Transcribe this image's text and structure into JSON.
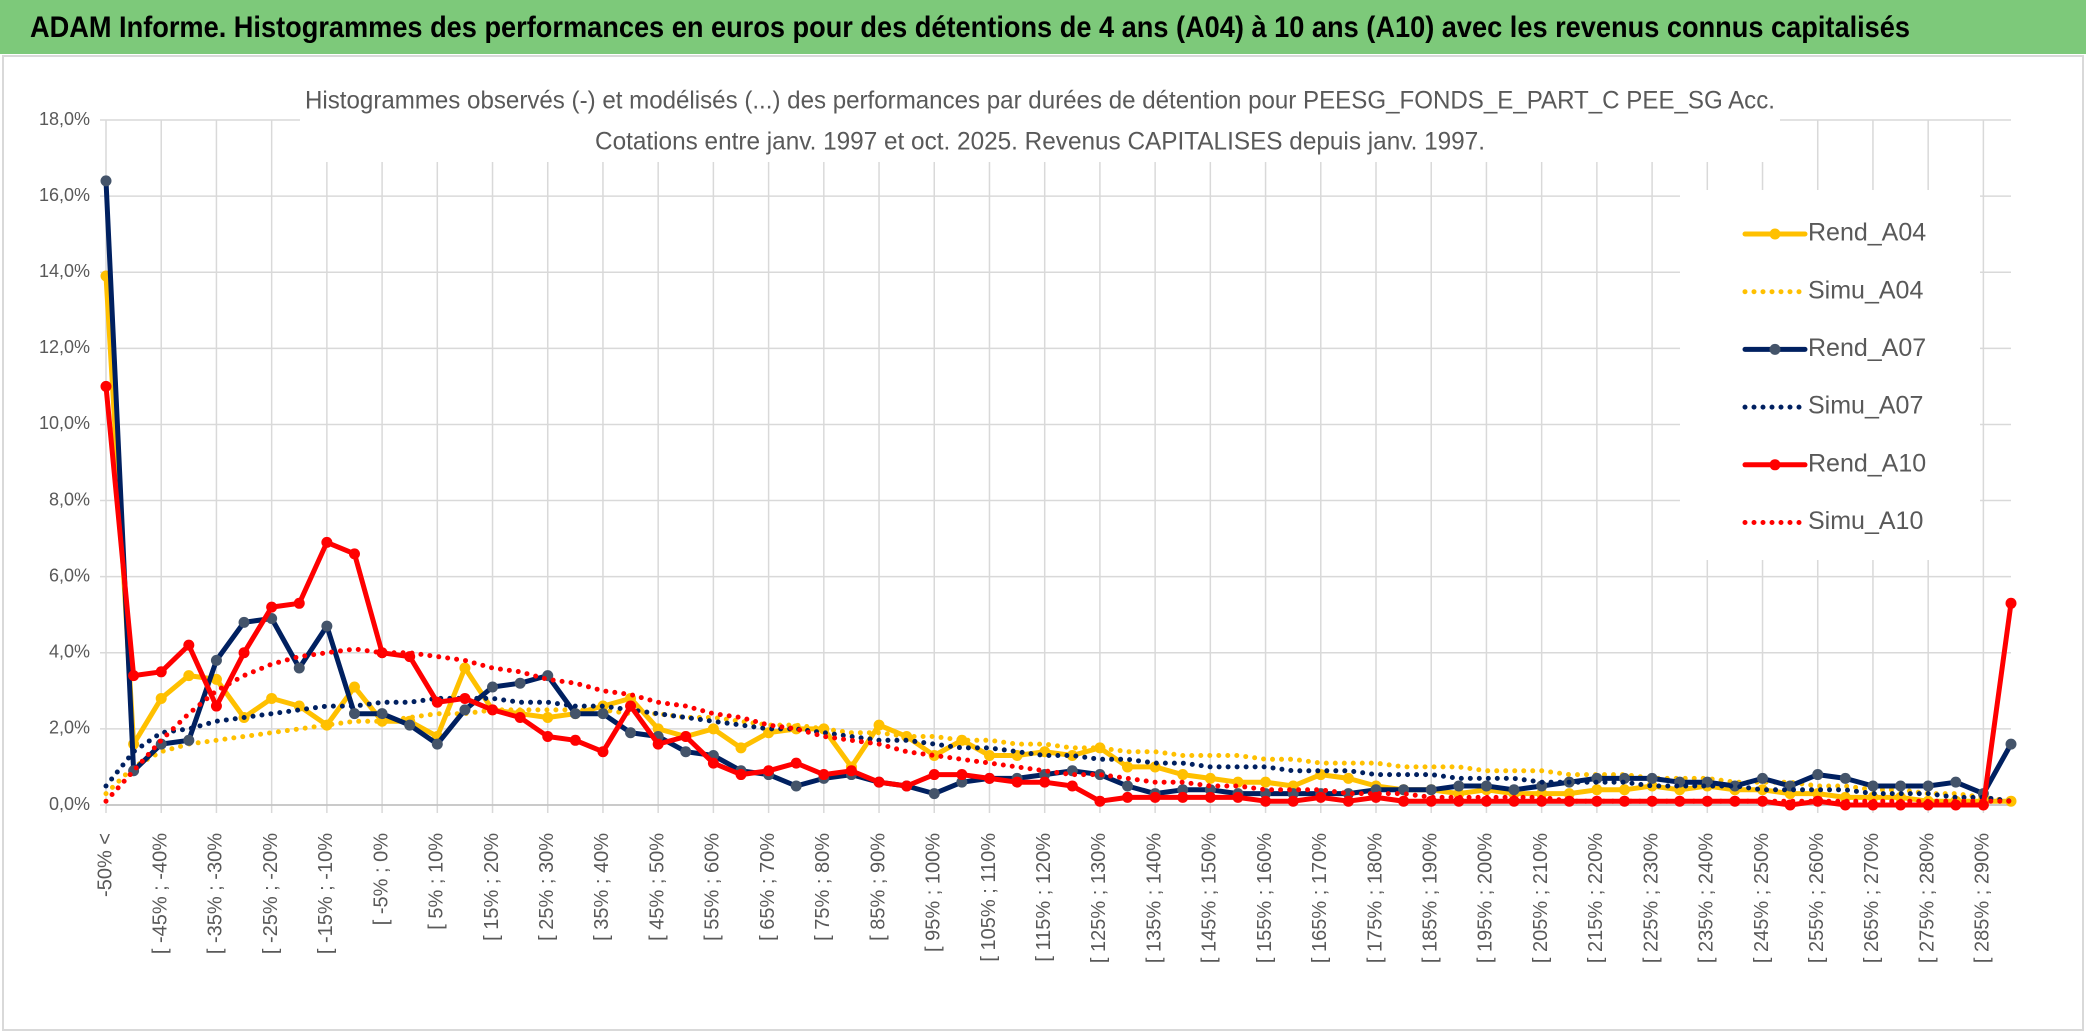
{
  "chart_data": {
    "type": "line",
    "header": "ADAM Informe. Histogrammes des performances en euros pour des détentions de 4 ans (A04) à 10 ans (A10) avec les revenus connus capitalisés",
    "title": "Histogrammes observés (-) et modélisés (...) des performances par durées de détention pour PEESG_FONDS_E_PART_C PEE_SG Acc.",
    "subtitle": "Cotations entre janv. 1997 et oct. 2025. Revenus CAPITALISES depuis janv. 1997.",
    "categories": [
      "-50% <",
      null,
      "[ -45% ; -40%",
      null,
      "[ -35% ; -30%",
      null,
      "[ -25% ; -20%",
      null,
      "[ -15% ; -10%",
      null,
      "[ -5% ; 0%",
      null,
      "[ 5% ; 10%",
      null,
      "[ 15% ; 20%",
      null,
      "[ 25% ; 30%",
      null,
      "[ 35% ; 40%",
      null,
      "[ 45% ; 50%",
      null,
      "[ 55% ; 60%",
      null,
      "[ 65% ; 70%",
      null,
      "[ 75% ; 80%",
      null,
      "[ 85% ; 90%",
      null,
      "[ 95% ; 100%",
      null,
      "[ 105% ; 110%",
      null,
      "[ 115% ; 120%",
      null,
      "[ 125% ; 130%",
      null,
      "[ 135% ; 140%",
      null,
      "[ 145% ; 150%",
      null,
      "[ 155% ; 160%",
      null,
      "[ 165% ; 170%",
      null,
      "[ 175% ; 180%",
      null,
      "[ 185% ; 190%",
      null,
      "[ 195% ; 200%",
      null,
      "[ 205% ; 210%",
      null,
      "[ 215% ; 220%",
      null,
      "[ 225% ; 230%",
      null,
      "[ 235% ; 240%",
      null,
      "[ 245% ; 250%",
      null,
      "[ 255% ; 260%",
      null,
      "[ 265% ; 270%",
      null,
      "[ 275% ; 280%",
      null,
      "[ 285% ; 290%",
      null
    ],
    "ylim": [
      0,
      18
    ],
    "yticks": [
      {
        "value": 0,
        "label": "0,0%"
      },
      {
        "value": 2,
        "label": "2,0%"
      },
      {
        "value": 4,
        "label": "4,0%"
      },
      {
        "value": 6,
        "label": "6,0%"
      },
      {
        "value": 8,
        "label": "8,0%"
      },
      {
        "value": 10,
        "label": "10,0%"
      },
      {
        "value": 12,
        "label": "12,0%"
      },
      {
        "value": 14,
        "label": "14,0%"
      },
      {
        "value": 16,
        "label": "16,0%"
      },
      {
        "value": 18,
        "label": "18,0%"
      }
    ],
    "grid": true,
    "legend": "right",
    "series": [
      {
        "name": "Rend_A04",
        "color": "#FFC000",
        "style": "solid",
        "marker": true,
        "values": [
          13.9,
          1.6,
          2.8,
          3.4,
          3.3,
          2.3,
          2.8,
          2.6,
          2.1,
          3.1,
          2.2,
          2.2,
          1.8,
          3.6,
          2.5,
          2.4,
          2.3,
          2.4,
          2.6,
          2.8,
          2.0,
          1.8,
          2.0,
          1.5,
          1.9,
          2.0,
          2.0,
          1.0,
          2.1,
          1.8,
          1.3,
          1.7,
          1.3,
          1.3,
          1.4,
          1.3,
          1.5,
          1.0,
          1.0,
          0.8,
          0.7,
          0.6,
          0.6,
          0.5,
          0.8,
          0.7,
          0.5,
          0.4,
          0.4,
          0.3,
          0.4,
          0.3,
          0.3,
          0.3,
          0.4,
          0.4,
          0.5,
          0.4,
          0.5,
          0.4,
          0.4,
          0.3,
          0.3,
          0.2,
          0.2,
          0.2,
          0.1,
          0.1,
          0.1,
          0.1
        ]
      },
      {
        "name": "Simu_A04",
        "color": "#FFC000",
        "style": "dotted",
        "marker": false,
        "values": [
          0.3,
          1.0,
          1.4,
          1.6,
          1.7,
          1.8,
          1.9,
          2.0,
          2.1,
          2.2,
          2.2,
          2.3,
          2.4,
          2.4,
          2.5,
          2.5,
          2.5,
          2.5,
          2.5,
          2.4,
          2.4,
          2.3,
          2.3,
          2.2,
          2.1,
          2.1,
          2.0,
          1.9,
          1.9,
          1.8,
          1.8,
          1.7,
          1.7,
          1.6,
          1.6,
          1.5,
          1.5,
          1.4,
          1.4,
          1.3,
          1.3,
          1.3,
          1.2,
          1.2,
          1.1,
          1.1,
          1.1,
          1.0,
          1.0,
          1.0,
          0.9,
          0.9,
          0.9,
          0.8,
          0.8,
          0.8,
          0.7,
          0.7,
          0.7,
          0.6,
          0.6,
          0.6,
          0.5,
          0.5,
          0.4,
          0.4,
          0.3,
          0.3,
          0.2,
          0.1
        ]
      },
      {
        "name": "Rend_A07",
        "color": "#002060",
        "style": "solid",
        "marker": true,
        "values": [
          16.4,
          0.9,
          1.6,
          1.7,
          3.8,
          4.8,
          4.9,
          3.6,
          4.7,
          2.4,
          2.4,
          2.1,
          1.6,
          2.5,
          3.1,
          3.2,
          3.4,
          2.4,
          2.4,
          1.9,
          1.8,
          1.4,
          1.3,
          0.9,
          0.8,
          0.5,
          0.7,
          0.8,
          0.6,
          0.5,
          0.3,
          0.6,
          0.7,
          0.7,
          0.8,
          0.9,
          0.8,
          0.5,
          0.3,
          0.4,
          0.4,
          0.3,
          0.3,
          0.3,
          0.3,
          0.3,
          0.4,
          0.4,
          0.4,
          0.5,
          0.5,
          0.4,
          0.5,
          0.6,
          0.7,
          0.7,
          0.7,
          0.6,
          0.6,
          0.5,
          0.7,
          0.5,
          0.8,
          0.7,
          0.5,
          0.5,
          0.5,
          0.6,
          0.3,
          1.6
        ]
      },
      {
        "name": "Simu_A07",
        "color": "#002060",
        "style": "dotted",
        "marker": false,
        "values": [
          0.5,
          1.4,
          1.9,
          2.0,
          2.2,
          2.3,
          2.4,
          2.5,
          2.6,
          2.6,
          2.7,
          2.7,
          2.8,
          2.8,
          2.8,
          2.7,
          2.7,
          2.6,
          2.6,
          2.5,
          2.4,
          2.3,
          2.2,
          2.1,
          2.0,
          2.0,
          1.9,
          1.8,
          1.7,
          1.7,
          1.6,
          1.5,
          1.5,
          1.4,
          1.3,
          1.3,
          1.2,
          1.2,
          1.1,
          1.1,
          1.0,
          1.0,
          1.0,
          0.9,
          0.9,
          0.9,
          0.8,
          0.8,
          0.8,
          0.7,
          0.7,
          0.7,
          0.6,
          0.6,
          0.6,
          0.6,
          0.5,
          0.5,
          0.5,
          0.5,
          0.4,
          0.4,
          0.4,
          0.4,
          0.3,
          0.3,
          0.3,
          0.2,
          0.2,
          0.1
        ]
      },
      {
        "name": "Rend_A10",
        "color": "#FF0000",
        "style": "solid",
        "marker": true,
        "values": [
          11.0,
          3.4,
          3.5,
          4.2,
          2.6,
          4.0,
          5.2,
          5.3,
          6.9,
          6.6,
          4.0,
          3.9,
          2.7,
          2.8,
          2.5,
          2.3,
          1.8,
          1.7,
          1.4,
          2.6,
          1.6,
          1.8,
          1.1,
          0.8,
          0.9,
          1.1,
          0.8,
          0.9,
          0.6,
          0.5,
          0.8,
          0.8,
          0.7,
          0.6,
          0.6,
          0.5,
          0.1,
          0.2,
          0.2,
          0.2,
          0.2,
          0.2,
          0.1,
          0.1,
          0.2,
          0.1,
          0.2,
          0.1,
          0.1,
          0.1,
          0.1,
          0.1,
          0.1,
          0.1,
          0.1,
          0.1,
          0.1,
          0.1,
          0.1,
          0.1,
          0.1,
          0.0,
          0.1,
          0.0,
          0.0,
          0.0,
          0.0,
          0.0,
          0.0,
          5.3
        ]
      },
      {
        "name": "Simu_A10",
        "color": "#FF0000",
        "style": "dotted",
        "marker": false,
        "values": [
          0.1,
          0.9,
          1.7,
          2.4,
          3.0,
          3.4,
          3.7,
          3.9,
          4.0,
          4.1,
          4.0,
          4.0,
          3.9,
          3.8,
          3.6,
          3.5,
          3.3,
          3.2,
          3.0,
          2.9,
          2.7,
          2.6,
          2.4,
          2.3,
          2.1,
          2.0,
          1.8,
          1.7,
          1.6,
          1.4,
          1.3,
          1.2,
          1.1,
          1.0,
          0.9,
          0.8,
          0.8,
          0.7,
          0.6,
          0.6,
          0.5,
          0.5,
          0.4,
          0.4,
          0.4,
          0.3,
          0.3,
          0.3,
          0.2,
          0.2,
          0.2,
          0.2,
          0.2,
          0.1,
          0.1,
          0.1,
          0.1,
          0.1,
          0.1,
          0.1,
          0.1,
          0.1,
          0.1,
          0.1,
          0.1,
          0.1,
          0.1,
          0.1,
          0.1,
          0.1
        ]
      }
    ]
  }
}
